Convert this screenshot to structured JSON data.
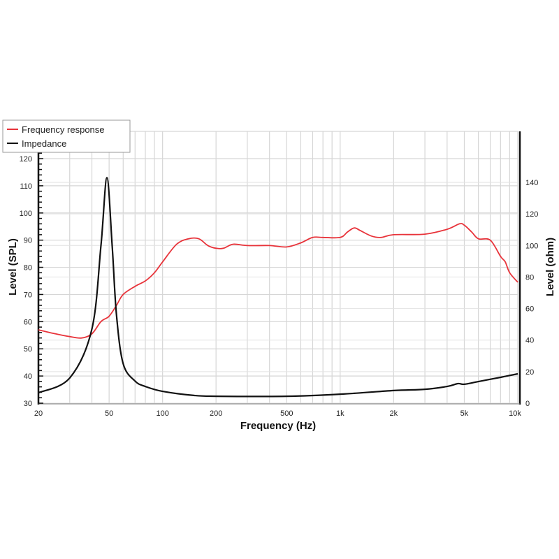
{
  "chart_data": {
    "type": "line",
    "title": "",
    "xlabel": "Frequency (Hz)",
    "ylabel": "Level (SPL)",
    "y2label": "Level (ohm)",
    "xscale": "log",
    "xlim": [
      20,
      10000
    ],
    "ylim": [
      30,
      120
    ],
    "y2lim": [
      0,
      155
    ],
    "grid": true,
    "legend_position": "top-left",
    "xticks": [
      {
        "v": 20,
        "label": "20"
      },
      {
        "v": 50,
        "label": "50"
      },
      {
        "v": 100,
        "label": "100"
      },
      {
        "v": 200,
        "label": "200"
      },
      {
        "v": 500,
        "label": "500"
      },
      {
        "v": 1000,
        "label": "1k"
      },
      {
        "v": 2000,
        "label": "2k"
      },
      {
        "v": 5000,
        "label": "5k"
      },
      {
        "v": 10000,
        "label": "10k"
      }
    ],
    "yticks": [
      "30",
      "40",
      "50",
      "60",
      "70",
      "80",
      "90",
      "100",
      "110",
      "120"
    ],
    "y2ticks": [
      "0",
      "20",
      "40",
      "60",
      "80",
      "100",
      "120",
      "140"
    ],
    "series": [
      {
        "name": "Frequency response",
        "axis": "left",
        "color": "#e8333a",
        "x": [
          20,
          25,
          30,
          35,
          40,
          45,
          50,
          55,
          60,
          70,
          80,
          90,
          100,
          120,
          140,
          160,
          180,
          200,
          220,
          250,
          300,
          400,
          500,
          600,
          700,
          800,
          1000,
          1100,
          1200,
          1300,
          1500,
          1700,
          2000,
          3000,
          4000,
          4700,
          5000,
          5500,
          6000,
          7000,
          8000,
          8500,
          9000,
          10000
        ],
        "y": [
          57,
          55.5,
          54.5,
          54,
          55.5,
          60,
          62,
          66,
          70,
          73,
          75,
          78,
          82,
          88.5,
          90.5,
          90.5,
          88,
          87,
          87,
          88.5,
          88,
          88,
          87.5,
          89,
          91,
          91,
          91,
          93,
          94.5,
          93.5,
          91.5,
          91,
          92,
          92.2,
          94,
          96,
          95.5,
          93,
          90.5,
          90,
          84,
          82,
          78,
          74.5
        ]
      },
      {
        "name": "Impedance",
        "axis": "right",
        "color": "#111111",
        "x": [
          20,
          30,
          40,
          45,
          48.6,
          52,
          55,
          60,
          70,
          80,
          100,
          150,
          200,
          500,
          1000,
          2000,
          3000,
          4000,
          4600,
          5000,
          6000,
          8000,
          10000
        ],
        "y": [
          6.6,
          16,
          47,
          100,
          143,
          100,
          56,
          25,
          14,
          10.6,
          7.5,
          4.9,
          4.4,
          4.4,
          5.7,
          8,
          8.8,
          10.6,
          12.4,
          12,
          13.7,
          16.4,
          18.6
        ]
      }
    ]
  }
}
